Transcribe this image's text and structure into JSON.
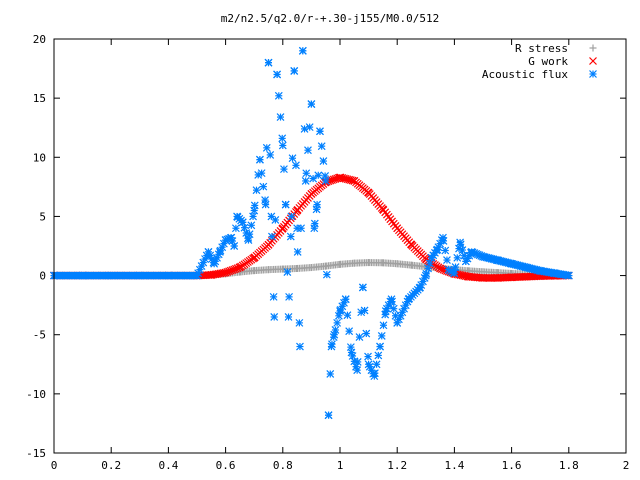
{
  "chart_data": {
    "type": "scatter",
    "title": "m2/n2.5/q2.0/r-+.30-j155/M0.0/512",
    "xlabel": "",
    "ylabel": "",
    "xlim": [
      0,
      2
    ],
    "ylim": [
      -15,
      20
    ],
    "xticks": [
      0,
      0.2,
      0.4,
      0.6,
      0.8,
      1,
      1.2,
      1.4,
      1.6,
      1.8,
      2
    ],
    "xtick_labels": [
      "0",
      "0.2",
      "0.4",
      "0.6",
      "0.8",
      "1",
      "1.2",
      "1.4",
      "1.6",
      "1.8",
      "2"
    ],
    "yticks": [
      -15,
      -10,
      -5,
      0,
      5,
      10,
      15,
      20
    ],
    "ytick_labels": [
      "-15",
      "-10",
      "-5",
      "0",
      "5",
      "10",
      "15",
      "20"
    ],
    "grid": false,
    "legend_position": "top-right",
    "series": [
      {
        "name": "R stress",
        "marker": "plus",
        "color": "#a0a0a0",
        "x": [
          0.0,
          0.1,
          0.2,
          0.3,
          0.4,
          0.5,
          0.55,
          0.6,
          0.65,
          0.7,
          0.75,
          0.8,
          0.85,
          0.9,
          0.95,
          1.0,
          1.05,
          1.1,
          1.15,
          1.2,
          1.25,
          1.3,
          1.35,
          1.4,
          1.45,
          1.5,
          1.55,
          1.6,
          1.65,
          1.7,
          1.75,
          1.8
        ],
        "y": [
          0.0,
          0.0,
          0.0,
          0.0,
          0.0,
          0.0,
          0.05,
          0.15,
          0.3,
          0.42,
          0.5,
          0.55,
          0.6,
          0.68,
          0.8,
          0.95,
          1.05,
          1.1,
          1.08,
          1.0,
          0.88,
          0.75,
          0.62,
          0.5,
          0.4,
          0.32,
          0.25,
          0.18,
          0.12,
          0.07,
          0.03,
          0.0
        ]
      },
      {
        "name": "G work",
        "marker": "cross",
        "color": "#ff0000",
        "x": [
          0.0,
          0.1,
          0.2,
          0.3,
          0.4,
          0.5,
          0.55,
          0.6,
          0.65,
          0.7,
          0.75,
          0.8,
          0.85,
          0.9,
          0.95,
          1.0,
          1.05,
          1.1,
          1.15,
          1.2,
          1.25,
          1.3,
          1.35,
          1.4,
          1.45,
          1.5,
          1.55,
          1.6,
          1.65,
          1.7,
          1.75,
          1.8
        ],
        "y": [
          0.0,
          0.0,
          0.0,
          0.0,
          0.0,
          0.0,
          0.05,
          0.25,
          0.7,
          1.5,
          2.6,
          4.0,
          5.5,
          6.9,
          7.9,
          8.3,
          8.0,
          7.0,
          5.6,
          4.0,
          2.6,
          1.4,
          0.6,
          0.15,
          -0.1,
          -0.2,
          -0.2,
          -0.15,
          -0.1,
          -0.05,
          -0.02,
          0.0
        ]
      },
      {
        "name": "Acoustic flux",
        "marker": "star",
        "color": "#0080ff",
        "x": [
          0.0,
          0.1,
          0.2,
          0.3,
          0.4,
          0.5,
          0.54,
          0.56,
          0.58,
          0.6,
          0.62,
          0.63,
          0.64,
          0.66,
          0.68,
          0.7,
          0.72,
          0.74,
          0.75,
          0.76,
          0.77,
          0.78,
          0.8,
          0.81,
          0.82,
          0.83,
          0.84,
          0.85,
          0.86,
          0.87,
          0.88,
          0.9,
          0.91,
          0.92,
          0.93,
          0.95,
          0.96,
          0.97,
          0.98,
          1.0,
          1.02,
          1.04,
          1.06,
          1.08,
          1.1,
          1.12,
          1.14,
          1.16,
          1.18,
          1.2,
          1.24,
          1.28,
          1.3,
          1.32,
          1.34,
          1.36,
          1.38,
          1.4,
          1.42,
          1.44,
          1.46,
          1.5,
          1.55,
          1.6,
          1.65,
          1.7,
          1.75,
          1.8
        ],
        "y": [
          0.0,
          0.0,
          0.0,
          0.0,
          0.0,
          0.0,
          2.0,
          1.0,
          2.0,
          3.0,
          3.2,
          2.5,
          5.0,
          4.5,
          3.0,
          5.5,
          9.8,
          6.0,
          18.0,
          5.0,
          -3.5,
          17.0,
          11.0,
          6.0,
          -3.5,
          5.0,
          17.3,
          4.0,
          -6.0,
          19.0,
          8.0,
          14.5,
          4.0,
          6.0,
          12.2,
          8.0,
          -11.8,
          -6.0,
          -5.0,
          -3.0,
          -2.0,
          -6.5,
          -8.0,
          -1.0,
          -7.5,
          -8.5,
          -6.0,
          -3.0,
          -2.0,
          -4.0,
          -2.0,
          -1.0,
          0.0,
          1.5,
          2.2,
          3.2,
          0.5,
          0.2,
          2.8,
          1.2,
          2.0,
          1.6,
          1.3,
          1.0,
          0.7,
          0.4,
          0.2,
          0.0
        ]
      }
    ]
  }
}
